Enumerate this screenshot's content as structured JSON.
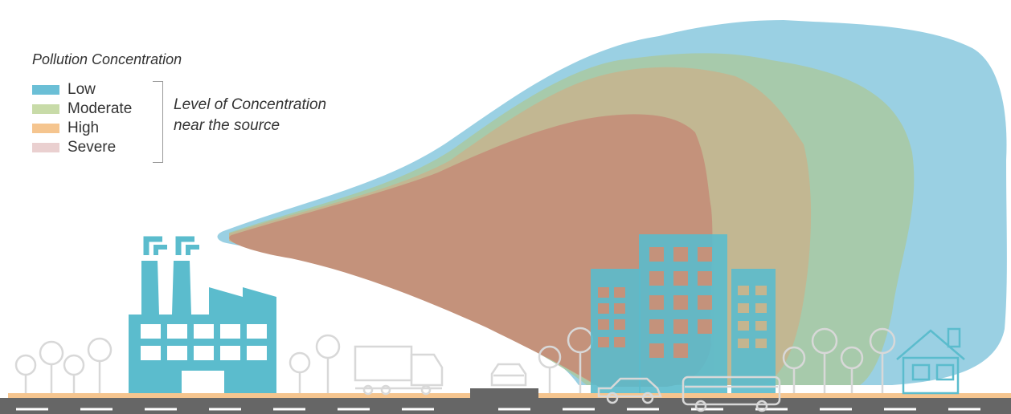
{
  "legend": {
    "title": "Pollution Concentration",
    "items": [
      {
        "label": "Low",
        "color": "#6bbfd6"
      },
      {
        "label": "Moderate",
        "color": "#c8dba8"
      },
      {
        "label": "High",
        "color": "#f5c58f"
      },
      {
        "label": "Severe",
        "color": "#ead0d0"
      }
    ],
    "bracket_note_line1": "Level of Concentration",
    "bracket_note_line2": "near the source"
  },
  "colors": {
    "plume_low": "#8fcbe0",
    "plume_moderate": "#a8c9a4",
    "plume_high": "#c5b58f",
    "plume_severe": "#c4927b",
    "building": "#5bbccd",
    "window_severe": "#c4927b",
    "window_clear": "#ffffff",
    "outline": "#d8d8d8",
    "road": "#666666",
    "ground": "#f5c58f"
  },
  "icons": [
    "factory-icon",
    "tree-icon",
    "truck-icon",
    "car-icon",
    "bus-icon",
    "house-icon",
    "office-building-icon"
  ]
}
